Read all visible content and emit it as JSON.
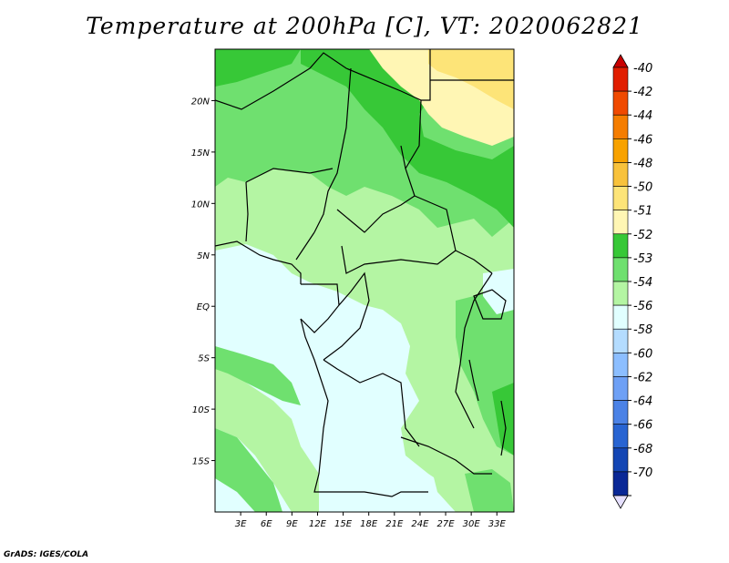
{
  "title": "Temperature at 200hPa [C], VT: 2020062821",
  "footer": "GrADS: IGES/COLA",
  "map": {
    "lat_range": [
      -20,
      25
    ],
    "lon_range": [
      0,
      35
    ],
    "lat_ticks": [
      {
        "label": "20N",
        "value": 20
      },
      {
        "label": "15N",
        "value": 15
      },
      {
        "label": "10N",
        "value": 10
      },
      {
        "label": "5N",
        "value": 5
      },
      {
        "label": "EQ",
        "value": 0
      },
      {
        "label": "5S",
        "value": -5
      },
      {
        "label": "10S",
        "value": -10
      },
      {
        "label": "15S",
        "value": -15
      }
    ],
    "lon_ticks": [
      {
        "label": "3E",
        "value": 3
      },
      {
        "label": "6E",
        "value": 6
      },
      {
        "label": "9E",
        "value": 9
      },
      {
        "label": "12E",
        "value": 12
      },
      {
        "label": "15E",
        "value": 15
      },
      {
        "label": "18E",
        "value": 18
      },
      {
        "label": "21E",
        "value": 21
      },
      {
        "label": "24E",
        "value": 24
      },
      {
        "label": "27E",
        "value": 27
      },
      {
        "label": "30E",
        "value": 30
      },
      {
        "label": "33E",
        "value": 33
      }
    ]
  },
  "colorbar": {
    "levels": [
      {
        "label": "-40",
        "color": "#e11e00"
      },
      {
        "label": "-42",
        "color": "#f04a00"
      },
      {
        "label": "-44",
        "color": "#f57d00"
      },
      {
        "label": "-46",
        "color": "#f8a200"
      },
      {
        "label": "-48",
        "color": "#f8c23c"
      },
      {
        "label": "-50",
        "color": "#fde478"
      },
      {
        "label": "-51",
        "color": "#fff6b4"
      },
      {
        "label": "-52",
        "color": "#37c837"
      },
      {
        "label": "-53",
        "color": "#6fe06f"
      },
      {
        "label": "-54",
        "color": "#b4f5a3"
      },
      {
        "label": "-56",
        "color": "#e1ffff"
      },
      {
        "label": "-58",
        "color": "#b4dcff"
      },
      {
        "label": "-60",
        "color": "#8cbeff"
      },
      {
        "label": "-62",
        "color": "#6ea0f5"
      },
      {
        "label": "-64",
        "color": "#4b82e6"
      },
      {
        "label": "-66",
        "color": "#2864d2"
      },
      {
        "label": "-68",
        "color": "#1446b4"
      },
      {
        "label": "-70",
        "color": "#0a2896"
      }
    ],
    "top_color": "#c80000",
    "bottom_color": "#e6e0ff"
  }
}
